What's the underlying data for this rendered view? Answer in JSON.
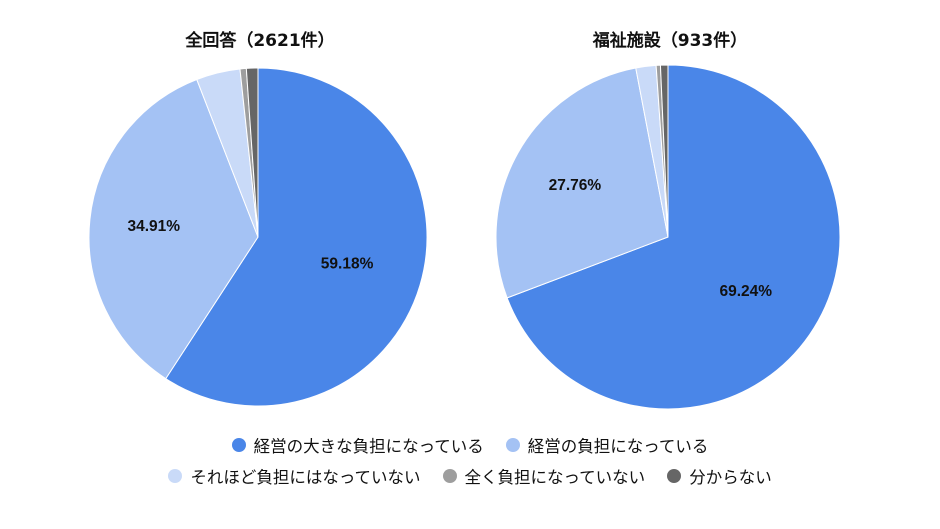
{
  "chart_data": [
    {
      "type": "pie",
      "title": "全回答（2621件）",
      "categories": [
        "経営の大きな負担になっている",
        "経営の負担になっている",
        "それほど負担にはなっていない",
        "全く負担になっていない",
        "分からない"
      ],
      "values": [
        59.18,
        34.91,
        4.2,
        0.6,
        1.1
      ],
      "data_labels": [
        "59.18%",
        "34.91%",
        "",
        "",
        ""
      ]
    },
    {
      "type": "pie",
      "title": "福祉施設（933件）",
      "categories": [
        "経営の大きな負担になっている",
        "経営の負担になっている",
        "それほど負担にはなっていない",
        "全く負担になっていない",
        "分からない"
      ],
      "values": [
        69.24,
        27.76,
        1.9,
        0.4,
        0.7
      ],
      "data_labels": [
        "69.24%",
        "27.76%",
        "",
        "",
        ""
      ]
    }
  ],
  "colors": [
    "#4a86e8",
    "#a4c2f4",
    "#c9daf8",
    "#9e9e9e",
    "#666666"
  ],
  "legend": [
    "経営の大きな負担になっている",
    "経営の負担になっている",
    "それほど負担にはなっていない",
    "全く負担になっていない",
    "分からない"
  ]
}
